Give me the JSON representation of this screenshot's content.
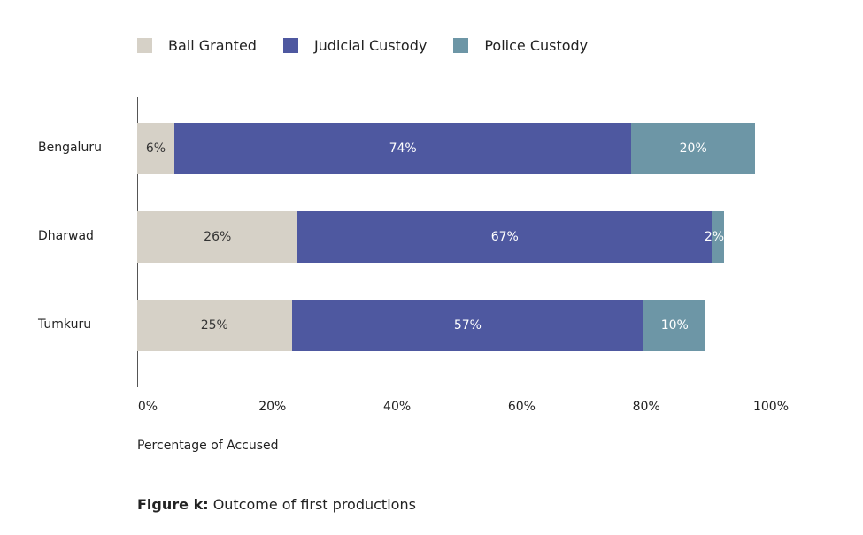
{
  "chart_data": {
    "type": "bar",
    "orientation": "horizontal",
    "stacked": true,
    "categories": [
      "Bengaluru",
      "Dharwad",
      "Tumkuru"
    ],
    "series": [
      {
        "name": "Bail Granted",
        "color": "#d6d1c7",
        "values": [
          6,
          26,
          25
        ],
        "labels": [
          "6%",
          "26%",
          "25%"
        ]
      },
      {
        "name": "Judicial Custody",
        "color": "#4e58a0",
        "values": [
          74,
          67,
          57
        ],
        "labels": [
          "74%",
          "67%",
          "57%"
        ]
      },
      {
        "name": "Police Custody",
        "color": "#6d96a6",
        "values": [
          20,
          2,
          10
        ],
        "labels": [
          "20%",
          "2%",
          "10%"
        ]
      }
    ],
    "xlim": [
      0,
      100
    ],
    "xticks": [
      "0%",
      "20%",
      "40%",
      "60%",
      "80%",
      "100%"
    ],
    "xlabel": "Percentage of Accused",
    "legend": "top",
    "grid": false
  },
  "caption": {
    "prefix": "Figure k:",
    "text": " Outcome of first productions"
  }
}
